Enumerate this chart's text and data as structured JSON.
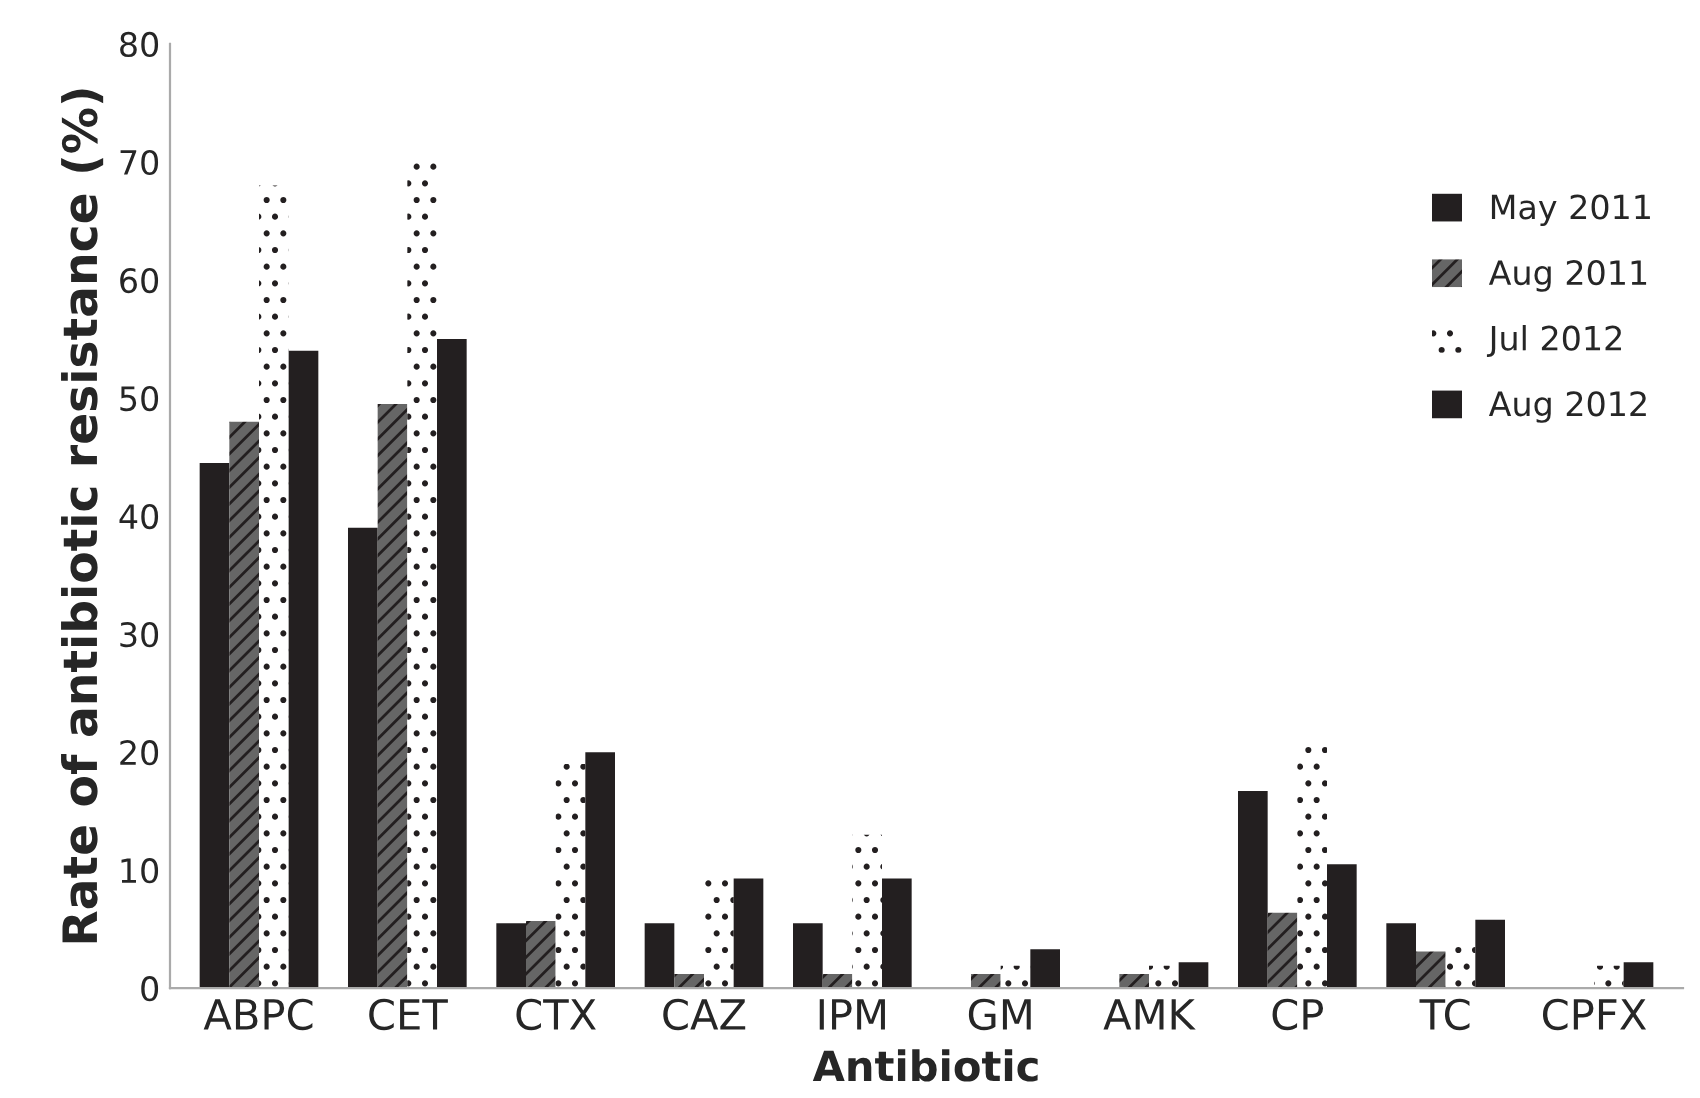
{
  "chart_data": {
    "type": "bar",
    "xlabel": "Antibiotic",
    "ylabel": "Rate of antibiotic resistance (%)",
    "categories": [
      "ABPC",
      "CET",
      "CTX",
      "CAZ",
      "IPM",
      "GM",
      "AMK",
      "CP",
      "TC",
      "CPFX"
    ],
    "series": [
      {
        "name": "May 2011",
        "color": "#231f20",
        "values": [
          44.5,
          39,
          5.5,
          5.5,
          5.5,
          0,
          0,
          16.7,
          5.5,
          0
        ]
      },
      {
        "name": "Aug 2011",
        "color": "#666666",
        "values": [
          48,
          49.5,
          5.7,
          1.2,
          1.2,
          1.2,
          1.2,
          6.4,
          3.1,
          0
        ]
      },
      {
        "name": "Jul 2012",
        "color": "#ffffff",
        "values": [
          68,
          70,
          19,
          9.3,
          13,
          1.9,
          1.9,
          20.8,
          3.8,
          1.9
        ]
      },
      {
        "name": "Aug 2012",
        "color": "#231f20",
        "values": [
          54,
          55,
          20,
          9.3,
          9.3,
          3.3,
          2.2,
          10.5,
          5.8,
          2.2
        ]
      }
    ],
    "ylim": [
      0,
      80
    ],
    "yticks": [
      0,
      10,
      20,
      30,
      40,
      50,
      60,
      70,
      80
    ],
    "grid": false,
    "legend": "right"
  }
}
